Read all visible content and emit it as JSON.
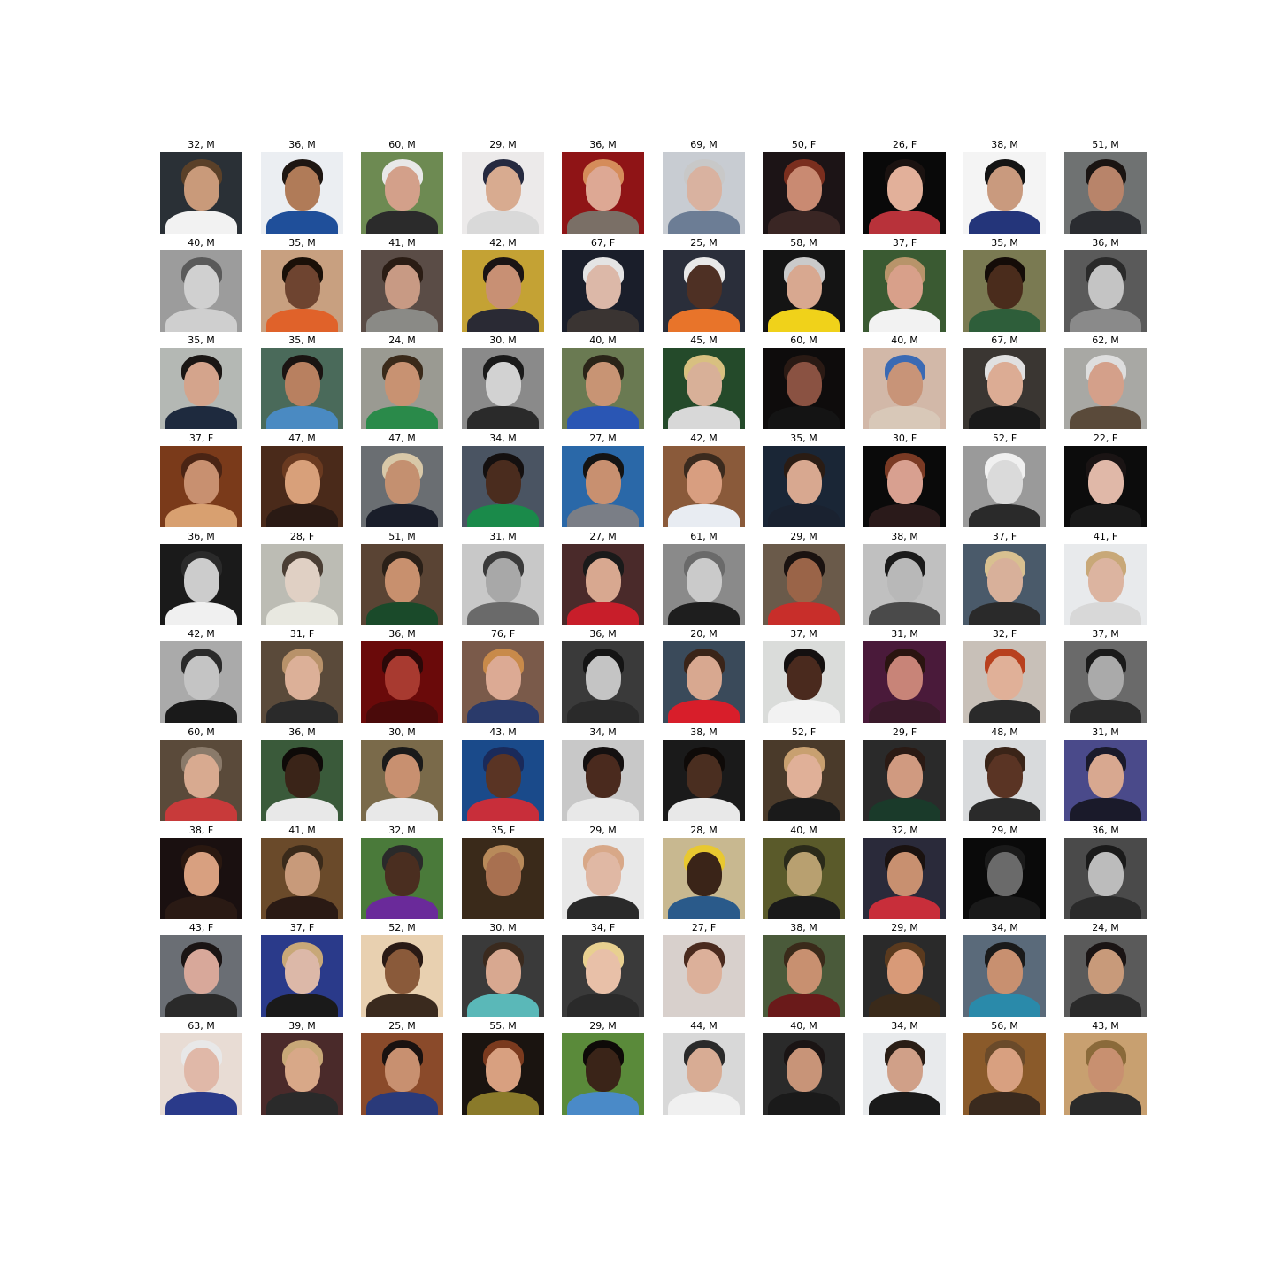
{
  "rows": [
    {
      "cells": [
        {
          "caption": "32, M",
          "bg": "#2a3036",
          "skin": "#c99a7a",
          "hair": "#5a4028",
          "shirt": "#f2f2f2"
        },
        {
          "caption": "36, M",
          "bg": "#ebeef2",
          "skin": "#b07b58",
          "hair": "#1e1612",
          "shirt": "#1f4f9a"
        },
        {
          "caption": "60, M",
          "bg": "#6d8a52",
          "skin": "#d3a08a",
          "hair": "#e8e8e8",
          "shirt": "#2b2b2b"
        },
        {
          "caption": "29, M",
          "bg": "#eceaea",
          "skin": "#d8ab90",
          "hair": "#262a40",
          "shirt": "#d9d9d9"
        },
        {
          "caption": "36, M",
          "bg": "#8f1416",
          "skin": "#dda894",
          "hair": "#d58c5a",
          "shirt": "#7a6f66"
        },
        {
          "caption": "69, M",
          "bg": "#c8ccd2",
          "skin": "#d9b2a0",
          "hair": "#c8c8c8",
          "shirt": "#6c7d95"
        },
        {
          "caption": "50, F",
          "bg": "#1c1416",
          "skin": "#c98a72",
          "hair": "#7a2e1e",
          "shirt": "#3a2624"
        },
        {
          "caption": "26, F",
          "bg": "#090909",
          "skin": "#e2b09a",
          "hair": "#1a1210",
          "shirt": "#b8323a"
        },
        {
          "caption": "38, M",
          "bg": "#f4f4f4",
          "skin": "#c99a7e",
          "hair": "#141414",
          "shirt": "#24357a"
        },
        {
          "caption": "51, M",
          "bg": "#6f7272",
          "skin": "#b8846a",
          "hair": "#1a1412",
          "shirt": "#2a2c30"
        }
      ]
    },
    {
      "cells": [
        {
          "caption": "40, M",
          "bg": "#9c9c9c",
          "skin": "#d0d0d0",
          "hair": "#5a5a5a",
          "shirt": "#cfcfcf"
        },
        {
          "caption": "35, M",
          "bg": "#c8a080",
          "skin": "#6e4430",
          "hair": "#1a1008",
          "shirt": "#e0622a"
        },
        {
          "caption": "41, M",
          "bg": "#5a4c46",
          "skin": "#c89a84",
          "hair": "#2a1c14",
          "shirt": "#8a8a86"
        },
        {
          "caption": "42, M",
          "bg": "#c4a234",
          "skin": "#c89074",
          "hair": "#1a1414",
          "shirt": "#2a2a34"
        },
        {
          "caption": "67, F",
          "bg": "#1a1e2a",
          "skin": "#dcb8a8",
          "hair": "#e4e4e4",
          "shirt": "#3a3432"
        },
        {
          "caption": "25, M",
          "bg": "#2a2e3a",
          "skin": "#4e3024",
          "hair": "#e8e8e8",
          "shirt": "#e8742a"
        },
        {
          "caption": "58, M",
          "bg": "#141414",
          "skin": "#d8a890",
          "hair": "#cacaca",
          "shirt": "#f0d21a"
        },
        {
          "caption": "37, F",
          "bg": "#3a5a32",
          "skin": "#d8a08a",
          "hair": "#b8946a",
          "shirt": "#f2f2f2"
        },
        {
          "caption": "35, M",
          "bg": "#7a7a52",
          "skin": "#4a2c1c",
          "hair": "#140c08",
          "shirt": "#2e5e3a"
        },
        {
          "caption": "36, M",
          "bg": "#5a5a5a",
          "skin": "#c4c4c4",
          "hair": "#2a2a2a",
          "shirt": "#8a8a8a"
        }
      ]
    },
    {
      "cells": [
        {
          "caption": "35, M",
          "bg": "#b4b8b4",
          "skin": "#d4a48c",
          "hair": "#1a1614",
          "shirt": "#1e2a3e"
        },
        {
          "caption": "35, M",
          "bg": "#4a6a5a",
          "skin": "#b88060",
          "hair": "#1a1412",
          "shirt": "#4a8ac2"
        },
        {
          "caption": "24, M",
          "bg": "#9a9a92",
          "skin": "#c89272",
          "hair": "#3a2a1a",
          "shirt": "#2a8a4a"
        },
        {
          "caption": "30, M",
          "bg": "#8a8a8a",
          "skin": "#d2d2d2",
          "hair": "#1a1a1a",
          "shirt": "#2a2a2a"
        },
        {
          "caption": "40, M",
          "bg": "#6a7a52",
          "skin": "#c89474",
          "hair": "#2a2418",
          "shirt": "#2a56b4"
        },
        {
          "caption": "45, M",
          "bg": "#244a2a",
          "skin": "#d8b098",
          "hair": "#d8c080",
          "shirt": "#d8d8d8"
        },
        {
          "caption": "60, M",
          "bg": "#0e0c0c",
          "skin": "#8a5242",
          "hair": "#2a1a14",
          "shirt": "#141414"
        },
        {
          "caption": "40, M",
          "bg": "#d2b8a8",
          "skin": "#c89478",
          "hair": "#3a6ab4",
          "shirt": "#d8c8b8"
        },
        {
          "caption": "67, M",
          "bg": "#3a3632",
          "skin": "#dcac94",
          "hair": "#e0e0e0",
          "shirt": "#1a1a1a"
        },
        {
          "caption": "62, M",
          "bg": "#a8a8a4",
          "skin": "#d4a08a",
          "hair": "#dedede",
          "shirt": "#5a4a3a"
        }
      ]
    },
    {
      "cells": [
        {
          "caption": "37, F",
          "bg": "#7a3a1a",
          "skin": "#c89070",
          "hair": "#4a2414",
          "shirt": "#d8a070"
        },
        {
          "caption": "47, M",
          "bg": "#4a2a1a",
          "skin": "#d8a07a",
          "hair": "#6a3a20",
          "shirt": "#2a1a14"
        },
        {
          "caption": "47, M",
          "bg": "#6a6e72",
          "skin": "#c49070",
          "hair": "#d8c8a8",
          "shirt": "#1a1e2a"
        },
        {
          "caption": "34, M",
          "bg": "#4a5462",
          "skin": "#4a2c1e",
          "hair": "#141010",
          "shirt": "#1a8a4a"
        },
        {
          "caption": "27, M",
          "bg": "#2a68a8",
          "skin": "#c89070",
          "hair": "#141414",
          "shirt": "#7a7e86"
        },
        {
          "caption": "42, M",
          "bg": "#8a5a3a",
          "skin": "#d89e80",
          "hair": "#3a2a1e",
          "shirt": "#e8ecf2"
        },
        {
          "caption": "35, M",
          "bg": "#1a2636",
          "skin": "#d8a890",
          "hair": "#2a1c14",
          "shirt": "#1a2230"
        },
        {
          "caption": "30, F",
          "bg": "#0a0a0a",
          "skin": "#d8a090",
          "hair": "#7a3a24",
          "shirt": "#2a1a1a"
        },
        {
          "caption": "52, F",
          "bg": "#9a9a9a",
          "skin": "#dadada",
          "hair": "#f0f0f0",
          "shirt": "#2a2a2a"
        },
        {
          "caption": "22, F",
          "bg": "#0c0c0c",
          "skin": "#e0b8a8",
          "hair": "#1a1414",
          "shirt": "#1a1a1a"
        }
      ]
    },
    {
      "cells": [
        {
          "caption": "36, M",
          "bg": "#1a1a1a",
          "skin": "#cccccc",
          "hair": "#2a2a2a",
          "shirt": "#f0f0f0"
        },
        {
          "caption": "28, F",
          "bg": "#bcbcb4",
          "skin": "#e0d0c4",
          "hair": "#4a3e34",
          "shirt": "#e8e8e0"
        },
        {
          "caption": "51, M",
          "bg": "#5a4434",
          "skin": "#c8906e",
          "hair": "#2a2018",
          "shirt": "#1a4a2a"
        },
        {
          "caption": "31, M",
          "bg": "#c8c8c8",
          "skin": "#a8a8a8",
          "hair": "#3a3a3a",
          "shirt": "#6a6a6a"
        },
        {
          "caption": "27, M",
          "bg": "#4a2a2a",
          "skin": "#d8a890",
          "hair": "#1a1a1a",
          "shirt": "#c81e2a"
        },
        {
          "caption": "61, M",
          "bg": "#8a8a8a",
          "skin": "#cacaca",
          "hair": "#6a6a6a",
          "shirt": "#1e1e1e"
        },
        {
          "caption": "29, M",
          "bg": "#6a5a4a",
          "skin": "#9a6448",
          "hair": "#1a1210",
          "shirt": "#c82e2a"
        },
        {
          "caption": "38, M",
          "bg": "#c0c0c0",
          "skin": "#b8b8b8",
          "hair": "#1a1a1a",
          "shirt": "#4a4a4a"
        },
        {
          "caption": "37, F",
          "bg": "#4a5a6a",
          "skin": "#d8b09a",
          "hair": "#d8c090",
          "shirt": "#2a2a2a"
        },
        {
          "caption": "41, F",
          "bg": "#e8eaec",
          "skin": "#dcb4a0",
          "hair": "#c8a878",
          "shirt": "#d8d8d8"
        }
      ]
    },
    {
      "cells": [
        {
          "caption": "42, M",
          "bg": "#aaaaaa",
          "skin": "#c4c4c4",
          "hair": "#2a2a2a",
          "shirt": "#1a1a1a"
        },
        {
          "caption": "31, F",
          "bg": "#5a4a3a",
          "skin": "#dcb098",
          "hair": "#b8926a",
          "shirt": "#2a2a2a"
        },
        {
          "caption": "36, M",
          "bg": "#6a0a0a",
          "skin": "#a83a30",
          "hair": "#2a0808",
          "shirt": "#4a0a0a"
        },
        {
          "caption": "76, F",
          "bg": "#7a5a4a",
          "skin": "#dcaa94",
          "hair": "#c88a4a",
          "shirt": "#2a3a6a"
        },
        {
          "caption": "36, M",
          "bg": "#3a3a3a",
          "skin": "#c4c4c4",
          "hair": "#141414",
          "shirt": "#2a2a2a"
        },
        {
          "caption": "20, M",
          "bg": "#3a4a5a",
          "skin": "#d8a890",
          "hair": "#3a2418",
          "shirt": "#d81e2a"
        },
        {
          "caption": "37, M",
          "bg": "#dadcda",
          "skin": "#4a2a1e",
          "hair": "#141010",
          "shirt": "#f2f2f2"
        },
        {
          "caption": "31, M",
          "bg": "#4a1a3a",
          "skin": "#c88478",
          "hair": "#2a1410",
          "shirt": "#3a1a2a"
        },
        {
          "caption": "32, F",
          "bg": "#c8c0b8",
          "skin": "#e0b098",
          "hair": "#b8401e",
          "shirt": "#2a2a2a"
        },
        {
          "caption": "37, M",
          "bg": "#6a6a6a",
          "skin": "#aaaaaa",
          "hair": "#1a1a1a",
          "shirt": "#2a2a2a"
        }
      ]
    },
    {
      "cells": [
        {
          "caption": "60, M",
          "bg": "#5a4a3a",
          "skin": "#d8aa90",
          "hair": "#8a7a6a",
          "shirt": "#c83a3a"
        },
        {
          "caption": "36, M",
          "bg": "#3a5a3a",
          "skin": "#3a2418",
          "hair": "#0e0a08",
          "shirt": "#e8e8e8"
        },
        {
          "caption": "30, M",
          "bg": "#7a6a4a",
          "skin": "#c89070",
          "hair": "#1a1a1a",
          "shirt": "#e8e8e8"
        },
        {
          "caption": "43, M",
          "bg": "#1a4a8a",
          "skin": "#5a3424",
          "hair": "#1a2a5a",
          "shirt": "#c82e3a"
        },
        {
          "caption": "34, M",
          "bg": "#c8c8c8",
          "skin": "#4a2a1e",
          "hair": "#141010",
          "shirt": "#e8e8e8"
        },
        {
          "caption": "38, M",
          "bg": "#1a1a1a",
          "skin": "#4a2e20",
          "hair": "#0e0a08",
          "shirt": "#e8e8e8"
        },
        {
          "caption": "52, F",
          "bg": "#4a3a2a",
          "skin": "#e0b098",
          "hair": "#c8a070",
          "shirt": "#1a1a1a"
        },
        {
          "caption": "29, F",
          "bg": "#2a2a2a",
          "skin": "#d09a80",
          "hair": "#2a1a14",
          "shirt": "#1a3a2a"
        },
        {
          "caption": "48, M",
          "bg": "#d8dadc",
          "skin": "#5a3424",
          "hair": "#3a2418",
          "shirt": "#2a2a2a"
        },
        {
          "caption": "31, M",
          "bg": "#4a4a8a",
          "skin": "#d8a890",
          "hair": "#1a1a2a",
          "shirt": "#1a1a2a"
        }
      ]
    },
    {
      "cells": [
        {
          "caption": "38, F",
          "bg": "#1a1010",
          "skin": "#d8a080",
          "hair": "#2a1810",
          "shirt": "#2a1a14"
        },
        {
          "caption": "41, M",
          "bg": "#6a4a2a",
          "skin": "#c89a7a",
          "hair": "#3a2a1a",
          "shirt": "#2a1a14"
        },
        {
          "caption": "32, M",
          "bg": "#4a7a3a",
          "skin": "#4a2e20",
          "hair": "#2a2a2a",
          "shirt": "#6a2a9a"
        },
        {
          "caption": "35, F",
          "bg": "#3a2a1a",
          "skin": "#a87050",
          "hair": "#b88a5a",
          "shirt": "#3a2a1a"
        },
        {
          "caption": "29, M",
          "bg": "#e8e8e8",
          "skin": "#e0b8a4",
          "hair": "#d8a888",
          "shirt": "#2a2a2a"
        },
        {
          "caption": "28, M",
          "bg": "#c8b890",
          "skin": "#3a2418",
          "hair": "#e8c830",
          "shirt": "#2a5a8a"
        },
        {
          "caption": "40, M",
          "bg": "#5a5a2a",
          "skin": "#b8a070",
          "hair": "#2a2a1a",
          "shirt": "#1a1a1a"
        },
        {
          "caption": "32, M",
          "bg": "#2a2a3a",
          "skin": "#c89070",
          "hair": "#1a1210",
          "shirt": "#c82e3a"
        },
        {
          "caption": "29, M",
          "bg": "#0a0a0a",
          "skin": "#6a6a6a",
          "hair": "#1a1a1a",
          "shirt": "#1a1a1a"
        },
        {
          "caption": "36, M",
          "bg": "#4a4a4a",
          "skin": "#bcbcbc",
          "hair": "#1a1a1a",
          "shirt": "#2a2a2a"
        }
      ]
    },
    {
      "cells": [
        {
          "caption": "43, F",
          "bg": "#6a6e74",
          "skin": "#d8a89a",
          "hair": "#1a1414",
          "shirt": "#2a2a2a"
        },
        {
          "caption": "37, F",
          "bg": "#2a3a8a",
          "skin": "#dcb8a8",
          "hair": "#c8a878",
          "shirt": "#1a1a1a"
        },
        {
          "caption": "52, M",
          "bg": "#e8d0b0",
          "skin": "#8a5a3a",
          "hair": "#2a1a14",
          "shirt": "#3a2a1e"
        },
        {
          "caption": "30, M",
          "bg": "#3a3a3a",
          "skin": "#d8a890",
          "hair": "#3a2a1e",
          "shirt": "#5ab8b8"
        },
        {
          "caption": "34, F",
          "bg": "#3a3a3a",
          "skin": "#e8c0a8",
          "hair": "#e8d090",
          "shirt": "#2a2a2a"
        },
        {
          "caption": "27, F",
          "bg": "#d8d0cc",
          "skin": "#dcb09a",
          "hair": "#4a2a1e",
          "shirt": "#d8d0cc"
        },
        {
          "caption": "38, M",
          "bg": "#4a5a3a",
          "skin": "#c89070",
          "hair": "#3a2a1a",
          "shirt": "#6a1a1a"
        },
        {
          "caption": "29, M",
          "bg": "#2a2a2a",
          "skin": "#d89a78",
          "hair": "#5a3a1e",
          "shirt": "#3a2a1a"
        },
        {
          "caption": "34, M",
          "bg": "#5a6a7a",
          "skin": "#c89070",
          "hair": "#1a1a1a",
          "shirt": "#2a8aaa"
        },
        {
          "caption": "24, M",
          "bg": "#5a5a5a",
          "skin": "#c89a7a",
          "hair": "#1a1414",
          "shirt": "#2a2a2a"
        }
      ]
    },
    {
      "cells": [
        {
          "caption": "63, M",
          "bg": "#e8dcd4",
          "skin": "#e0b8a8",
          "hair": "#e8e8e8",
          "shirt": "#2a3a8a"
        },
        {
          "caption": "39, M",
          "bg": "#4a2a2a",
          "skin": "#d8a888",
          "hair": "#c8a878",
          "shirt": "#2a2a2a"
        },
        {
          "caption": "25, M",
          "bg": "#8a4a2a",
          "skin": "#c89070",
          "hair": "#1a1210",
          "shirt": "#2a3a7a"
        },
        {
          "caption": "55, M",
          "bg": "#1a1410",
          "skin": "#d8a080",
          "hair": "#7a3a1e",
          "shirt": "#8a7a2a"
        },
        {
          "caption": "29, M",
          "bg": "#5a8a3a",
          "skin": "#3a2418",
          "hair": "#0e0a08",
          "shirt": "#4a8ac8"
        },
        {
          "caption": "44, M",
          "bg": "#d8d8d8",
          "skin": "#d8ac94",
          "hair": "#2a2a2a",
          "shirt": "#f0f0f0"
        },
        {
          "caption": "40, M",
          "bg": "#2a2a2a",
          "skin": "#c89478",
          "hair": "#1a1414",
          "shirt": "#1a1a1a"
        },
        {
          "caption": "34, M",
          "bg": "#e8eaec",
          "skin": "#d0a088",
          "hair": "#2a1e16",
          "shirt": "#1a1a1a"
        },
        {
          "caption": "56, M",
          "bg": "#8a5a2a",
          "skin": "#d8a080",
          "hair": "#6a4a2a",
          "shirt": "#3a2a1e"
        },
        {
          "caption": "43, M",
          "bg": "#c8a070",
          "skin": "#c89070",
          "hair": "#8a6a3a",
          "shirt": "#2a2a2a"
        }
      ]
    }
  ]
}
